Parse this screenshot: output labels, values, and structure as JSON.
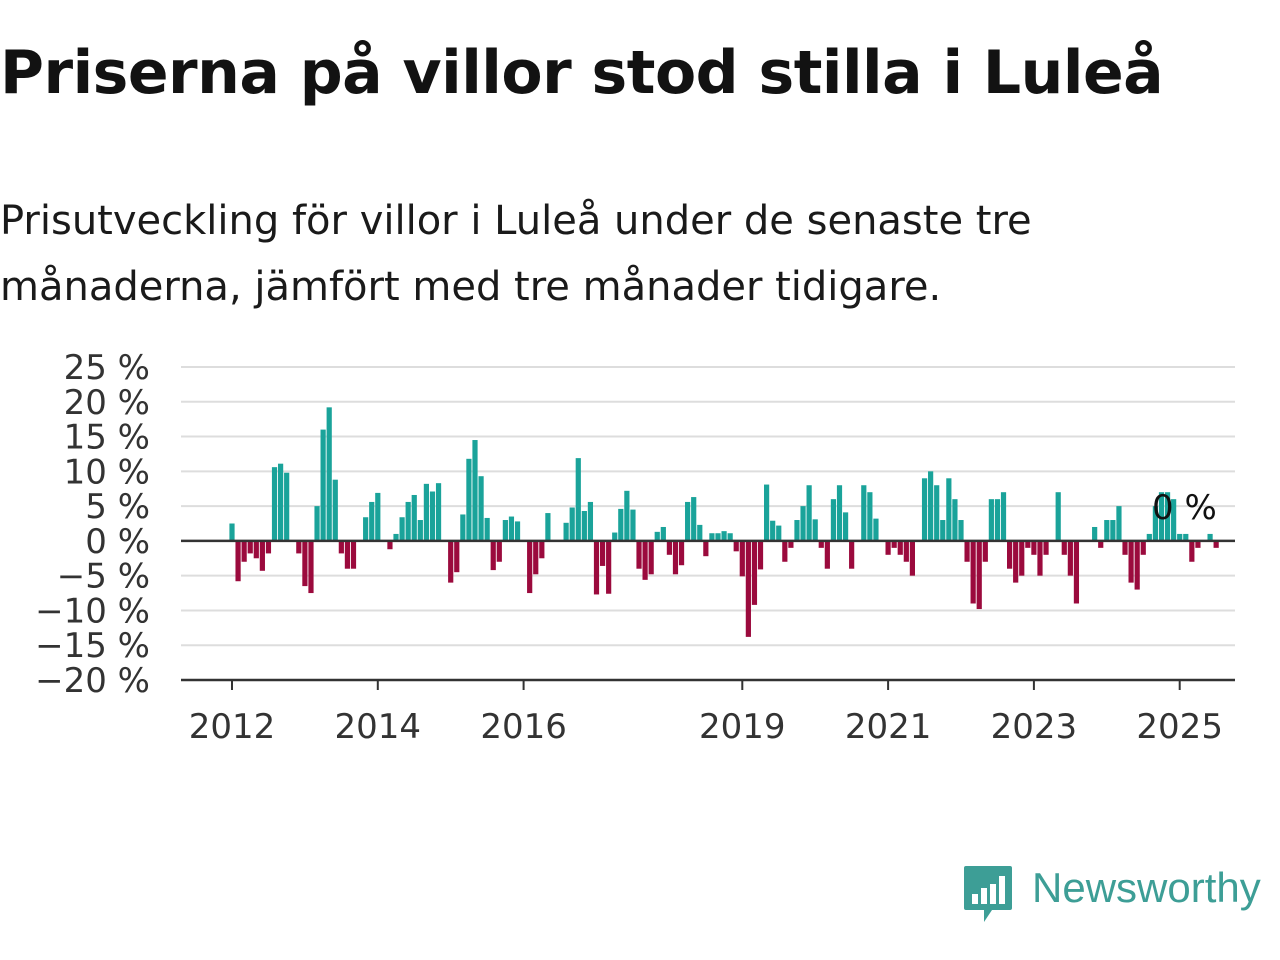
{
  "title": "Priserna på villor stod stilla i Luleå",
  "subtitle": "Prisutveckling för villor i Luleå under de senaste tre månaderna, jämfört med tre månader tidigare.",
  "logo": {
    "text": "Newsworthy",
    "icon": "newsworthy-logo-icon",
    "color": "#3d9e96"
  },
  "colors": {
    "positive": "#1aa39a",
    "negative": "#9b0a3d",
    "grid": "#dddddd",
    "axis": "#333333"
  },
  "chart_data": {
    "type": "bar",
    "title": "Priserna på villor stod stilla i Luleå",
    "subtitle": "Prisutveckling för villor i Luleå under de senaste tre månaderna, jämfört med tre månader tidigare.",
    "xlabel": "",
    "ylabel": "",
    "ylim": [
      -20,
      25
    ],
    "y_ticks": [
      25,
      20,
      15,
      10,
      5,
      0,
      -5,
      -10,
      -15,
      -20
    ],
    "y_tick_labels": [
      "25 %",
      "20 %",
      "15 %",
      "10 %",
      "5 %",
      "0 %",
      "−5 %",
      "−10 %",
      "−15 %",
      "−20 %"
    ],
    "x_ticks": [
      {
        "label": "2012",
        "date": "2012-01"
      },
      {
        "label": "2014",
        "date": "2014-01"
      },
      {
        "label": "2016",
        "date": "2016-01"
      },
      {
        "label": "2019",
        "date": "2019-01"
      },
      {
        "label": "2021",
        "date": "2021-01"
      },
      {
        "label": "2023",
        "date": "2023-01"
      },
      {
        "label": "2025",
        "date": "2025-01"
      }
    ],
    "grid": true,
    "last_value_label": "0 %",
    "start_date": "2012-01",
    "values": [
      2.5,
      -5.8,
      -3,
      -1.8,
      -2.5,
      -4.3,
      -1.8,
      10.6,
      11.1,
      9.8,
      0,
      -1.8,
      -6.5,
      -7.5,
      5,
      16,
      19.2,
      8.8,
      -1.8,
      -4,
      -4,
      0,
      3.4,
      5.6,
      6.9,
      0,
      -1.2,
      1,
      3.4,
      5.6,
      6.6,
      3,
      8.2,
      7.1,
      8.3,
      0,
      -6,
      -4.5,
      3.8,
      11.8,
      14.5,
      9.3,
      3.3,
      -4.2,
      -3,
      3,
      3.5,
      2.8,
      0,
      -7.5,
      -4.8,
      -2.5,
      4,
      0,
      0,
      2.6,
      4.8,
      11.9,
      4.3,
      5.6,
      -7.7,
      -3.6,
      -7.6,
      1.2,
      4.6,
      7.2,
      4.5,
      -4,
      -5.6,
      -4.8,
      1.3,
      2,
      -2,
      -4.8,
      -3.5,
      5.6,
      6.3,
      2.3,
      -2.2,
      1.1,
      1.1,
      1.4,
      1.1,
      -1.5,
      -5.1,
      -13.8,
      -9.2,
      -4.1,
      8.1,
      2.9,
      2.2,
      -3,
      -1,
      3,
      5,
      8,
      3.1,
      -1,
      -4,
      6,
      8,
      4.1,
      -4,
      0,
      8,
      7,
      3.2,
      0,
      -2,
      -1,
      -2,
      -3,
      -5,
      0,
      9,
      10,
      8,
      3,
      9,
      6,
      3,
      -3,
      -9,
      -9.8,
      -3,
      6,
      6,
      7,
      -4,
      -6,
      -5,
      -1,
      -2,
      -5,
      -2,
      0,
      7,
      -2,
      -5,
      -9,
      0,
      0,
      2,
      -1,
      3,
      3,
      5,
      -2,
      -6,
      -7,
      -2,
      1,
      5,
      7,
      7,
      6,
      1,
      1,
      -3,
      -1,
      0,
      1,
      -1,
      0
    ]
  }
}
